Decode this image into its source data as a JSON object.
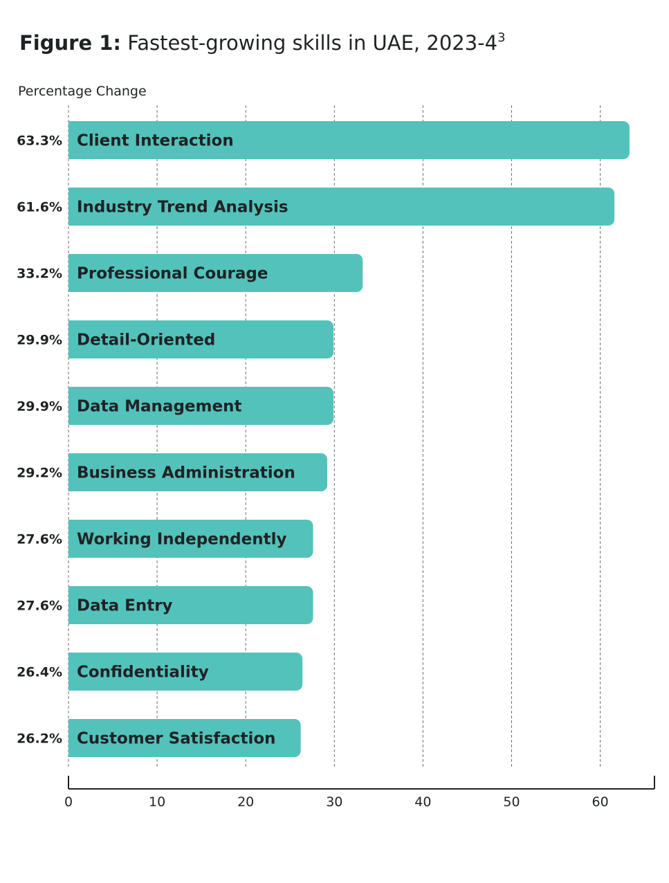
{
  "title": {
    "prefix": "Figure 1:",
    "text": "Fastest-growing skills in UAE, 2023-4",
    "footnote": "3"
  },
  "chart_data": {
    "type": "bar",
    "orientation": "horizontal",
    "title": "Fastest-growing skills in UAE, 2023-4",
    "xlabel": "Percentage Change",
    "ylabel": "",
    "xlim": [
      0,
      65
    ],
    "xticks": [
      0,
      10,
      20,
      30,
      40,
      50,
      60
    ],
    "grid": true,
    "bar_color": "#53c2ba",
    "categories": [
      "Client Interaction",
      "Industry Trend Analysis",
      "Professional Courage",
      "Detail-Oriented",
      "Data Management",
      "Business Administration",
      "Working Independently",
      "Data Entry",
      "Confidentiality",
      "Customer Satisfaction"
    ],
    "values": [
      63.3,
      61.6,
      33.2,
      29.9,
      29.9,
      29.2,
      27.6,
      27.6,
      26.4,
      26.2
    ],
    "value_labels": [
      "63.3%",
      "61.6%",
      "33.2%",
      "29.9%",
      "29.9%",
      "29.2%",
      "27.6%",
      "27.6%",
      "26.4%",
      "26.2%"
    ]
  }
}
